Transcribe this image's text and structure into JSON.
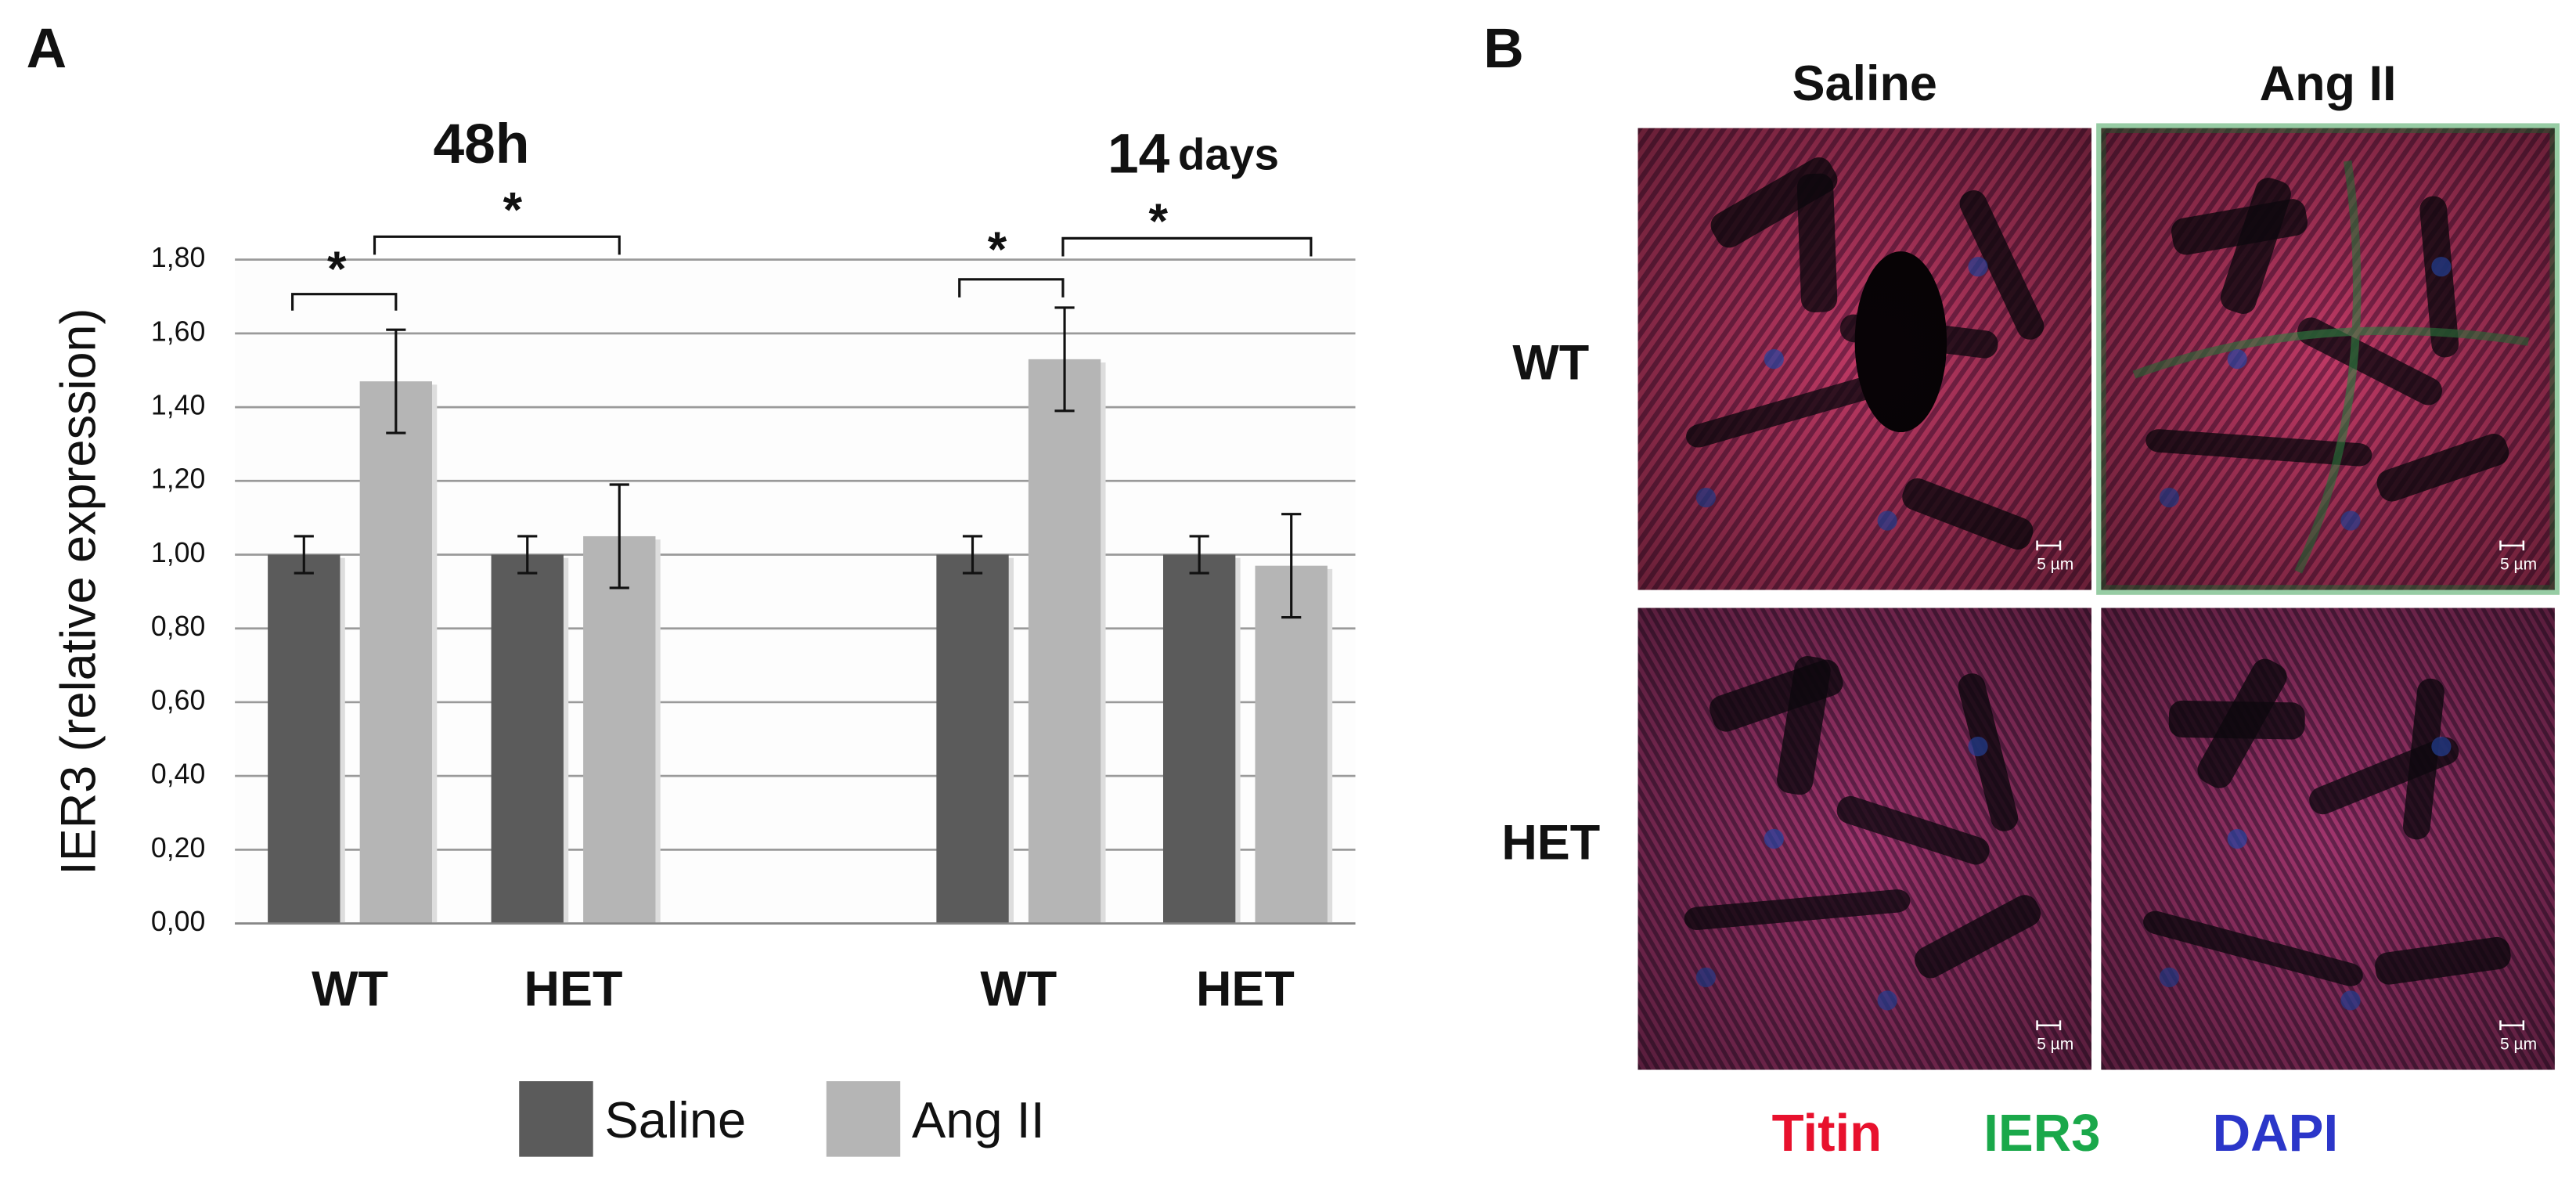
{
  "chart_data": {
    "type": "bar",
    "panel": "A",
    "y_label": "IER3 (relative expression)",
    "groups": [
      {
        "label": "48h"
      },
      {
        "label": "14",
        "unit": "days"
      }
    ],
    "categories": [
      "WT",
      "HET",
      "WT",
      "HET"
    ],
    "series": [
      {
        "name": "Saline",
        "color": "#5b5b5b",
        "values": [
          1.0,
          1.0,
          1.0,
          1.0
        ],
        "errors": [
          0.05,
          0.05,
          0.05,
          0.05
        ]
      },
      {
        "name": "Ang II",
        "color": "#b5b5b5",
        "values": [
          1.47,
          1.05,
          1.53,
          0.97
        ],
        "errors": [
          0.14,
          0.14,
          0.14,
          0.14
        ]
      }
    ],
    "ylim": [
      0,
      1.8
    ],
    "yticks": [
      {
        "value": 0,
        "label": "0,00"
      },
      {
        "value": 0.2,
        "label": "0,20"
      },
      {
        "value": 0.4,
        "label": "0,40"
      },
      {
        "value": 0.6,
        "label": "0,60"
      },
      {
        "value": 0.8,
        "label": "0,80"
      },
      {
        "value": 1.0,
        "label": "1,00"
      },
      {
        "value": 1.2,
        "label": "1,20"
      },
      {
        "value": 1.4,
        "label": "1,40"
      },
      {
        "value": 1.6,
        "label": "1,60"
      },
      {
        "value": 1.8,
        "label": "1,80"
      }
    ],
    "grid": true,
    "significance": [
      "*",
      "*",
      "*",
      "*"
    ]
  },
  "panel_b": {
    "label": "B",
    "columns": [
      "Saline",
      "Ang II"
    ],
    "rows": [
      "WT",
      "HET"
    ],
    "scale_bar": "5 µm",
    "stains": [
      {
        "name": "Titin",
        "color": "#e8112d"
      },
      {
        "name": "IER3",
        "color": "#1aa84a"
      },
      {
        "name": "DAPI",
        "color": "#2b36c9"
      }
    ]
  }
}
